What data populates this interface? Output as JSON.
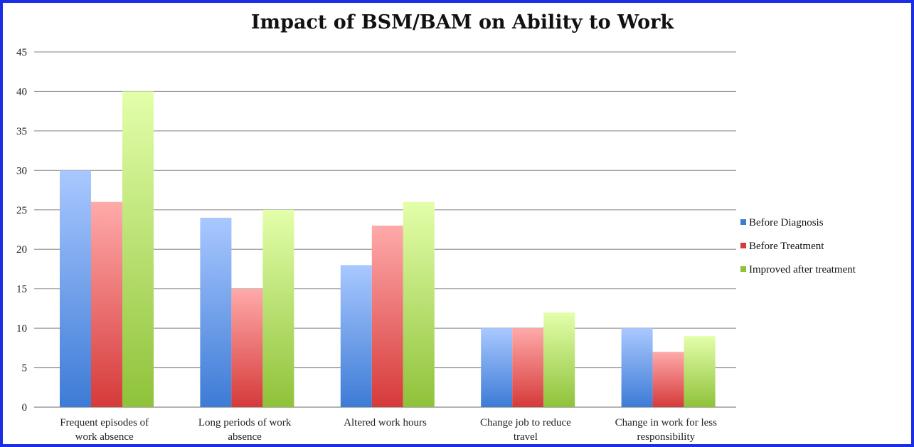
{
  "chart_data": {
    "type": "bar",
    "title": "Impact of BSM/BAM on Ability to Work",
    "xlabel": "",
    "ylabel": "",
    "ylim": [
      0,
      45
    ],
    "yticks": [
      "0",
      "5",
      "10",
      "15",
      "20",
      "25",
      "30",
      "35",
      "40",
      "45"
    ],
    "grid": true,
    "legend_position": "right",
    "categories": [
      [
        "Frequent episodes of",
        "work absence"
      ],
      [
        "Long periods of work",
        "absence"
      ],
      [
        "Altered work hours"
      ],
      [
        "Change job to reduce",
        "travel"
      ],
      [
        "Change in work for less",
        "responsibility"
      ]
    ],
    "series": [
      {
        "name": "Before Diagnosis",
        "values": [
          30,
          24,
          18,
          10,
          10
        ],
        "color_top": "#a9c8ff",
        "color_bottom": "#3d7bd6"
      },
      {
        "name": "Before Treatment",
        "values": [
          26,
          15,
          23,
          10,
          7
        ],
        "color_top": "#ffaaaa",
        "color_bottom": "#d63a3a"
      },
      {
        "name": "Improved after treatment",
        "values": [
          40,
          25,
          26,
          12,
          9
        ],
        "color_top": "#e3ffaa",
        "color_bottom": "#8fc23a"
      }
    ]
  }
}
